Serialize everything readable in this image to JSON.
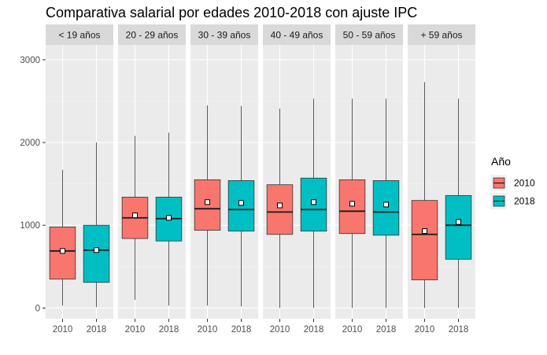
{
  "chart_data": {
    "type": "box",
    "title": "Comparativa salarial por edades 2010-2018 con ajuste IPC",
    "xlabel": "",
    "ylabel": "",
    "ylim": [
      -130,
      3180
    ],
    "yticks": [
      0,
      1000,
      2000,
      3000
    ],
    "grid": true,
    "legend_position": "right",
    "legend": {
      "title": "Año",
      "items": [
        {
          "label": "2010",
          "color": "#F8766D"
        },
        {
          "label": "2018",
          "color": "#00BFC4"
        }
      ]
    },
    "categories": [
      "2010",
      "2018"
    ],
    "facets": [
      {
        "label": "< 19 años",
        "boxes": [
          {
            "category": "2010",
            "min": 30,
            "q1": 350,
            "median": 690,
            "q3": 980,
            "max": 1670,
            "mean": 690
          },
          {
            "category": "2018",
            "min": 10,
            "q1": 310,
            "median": 700,
            "q3": 1000,
            "max": 2000,
            "mean": 700
          }
        ]
      },
      {
        "label": "20 - 29 años",
        "boxes": [
          {
            "category": "2010",
            "min": 100,
            "q1": 840,
            "median": 1090,
            "q3": 1340,
            "max": 2080,
            "mean": 1120
          },
          {
            "category": "2018",
            "min": 30,
            "q1": 810,
            "median": 1080,
            "q3": 1340,
            "max": 2120,
            "mean": 1090
          }
        ]
      },
      {
        "label": "30 - 39 años",
        "boxes": [
          {
            "category": "2010",
            "min": 30,
            "q1": 940,
            "median": 1200,
            "q3": 1550,
            "max": 2450,
            "mean": 1280
          },
          {
            "category": "2018",
            "min": 20,
            "q1": 930,
            "median": 1190,
            "q3": 1540,
            "max": 2440,
            "mean": 1270
          }
        ]
      },
      {
        "label": "40 - 49 años",
        "boxes": [
          {
            "category": "2010",
            "min": 0,
            "q1": 890,
            "median": 1160,
            "q3": 1490,
            "max": 2410,
            "mean": 1240
          },
          {
            "category": "2018",
            "min": 0,
            "q1": 930,
            "median": 1190,
            "q3": 1570,
            "max": 2530,
            "mean": 1280
          }
        ]
      },
      {
        "label": "50 - 59 años",
        "boxes": [
          {
            "category": "2010",
            "min": 0,
            "q1": 900,
            "median": 1170,
            "q3": 1550,
            "max": 2530,
            "mean": 1260
          },
          {
            "category": "2018",
            "min": 0,
            "q1": 880,
            "median": 1160,
            "q3": 1540,
            "max": 2530,
            "mean": 1250
          }
        ]
      },
      {
        "label": "+ 59 años",
        "boxes": [
          {
            "category": "2010",
            "min": 0,
            "q1": 340,
            "median": 890,
            "q3": 1300,
            "max": 2730,
            "mean": 930
          },
          {
            "category": "2018",
            "min": 0,
            "q1": 590,
            "median": 1000,
            "q3": 1360,
            "max": 2530,
            "mean": 1040
          }
        ]
      }
    ]
  }
}
